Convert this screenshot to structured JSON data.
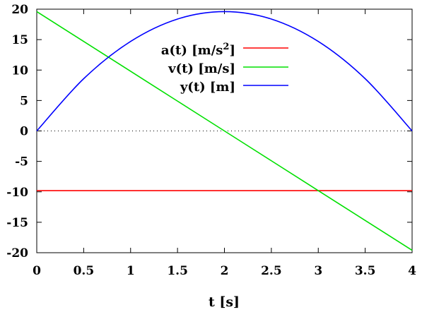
{
  "chart_data": {
    "type": "line",
    "title": "",
    "xlabel": "t [s]",
    "ylabel": "",
    "xlim": [
      0,
      4
    ],
    "ylim": [
      -20,
      20
    ],
    "x_ticks": [
      0,
      0.5,
      1,
      1.5,
      2,
      2.5,
      3,
      3.5,
      4
    ],
    "x_tick_labels": [
      "0",
      "0.5",
      "1",
      "1.5",
      "2",
      "2.5",
      "3",
      "3.5",
      "4"
    ],
    "y_ticks": [
      -20,
      -15,
      -10,
      -5,
      0,
      5,
      10,
      15,
      20
    ],
    "y_tick_labels": [
      "-20",
      "-15",
      "-10",
      "-5",
      "0",
      "5",
      "10",
      "15",
      "20"
    ],
    "zero_line": "dotted",
    "legend_position": "top-right",
    "x": [
      0,
      0.5,
      1,
      1.5,
      2,
      2.5,
      3,
      3.5,
      4
    ],
    "series": [
      {
        "name": "a(t) [m/s²]",
        "legend_main": "a(t) [m/s",
        "legend_sup": "2",
        "legend_tail": "]",
        "color": "#ff0000",
        "values": [
          -9.8,
          -9.8,
          -9.8,
          -9.8,
          -9.8,
          -9.8,
          -9.8,
          -9.8,
          -9.8
        ]
      },
      {
        "name": "v(t) [m/s]",
        "color": "#00e000",
        "values": [
          19.6,
          14.7,
          9.8,
          4.9,
          0,
          -4.9,
          -9.8,
          -14.7,
          -19.6
        ]
      },
      {
        "name": "y(t) [m]",
        "color": "#0000ff",
        "values": [
          0,
          8.58,
          14.7,
          18.38,
          19.6,
          18.38,
          14.7,
          8.58,
          0
        ]
      }
    ]
  }
}
